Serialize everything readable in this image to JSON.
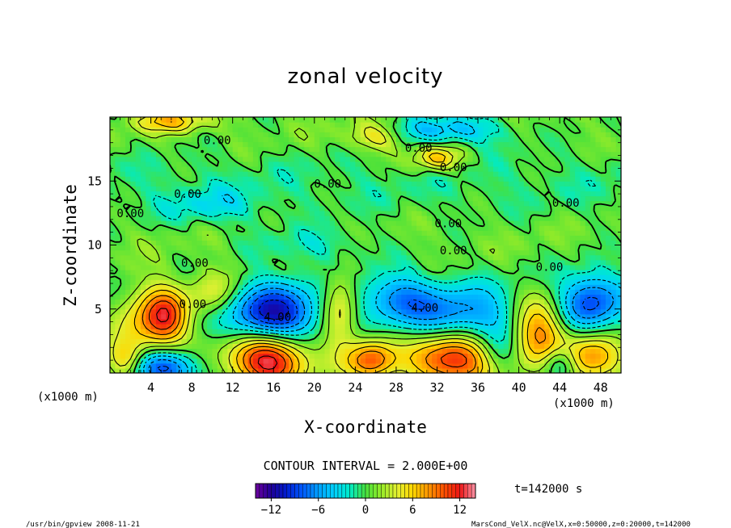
{
  "chart_data": {
    "type": "heatmap",
    "title": "zonal velocity",
    "xlabel": "X-coordinate",
    "ylabel": "Z-coordinate",
    "x_unit_left": "(x1000 m)",
    "x_unit_right": "(x1000 m)",
    "xlim": [
      0,
      50
    ],
    "ylim": [
      0,
      20
    ],
    "x_ticks": [
      4,
      8,
      12,
      16,
      20,
      24,
      28,
      32,
      36,
      40,
      44,
      48
    ],
    "y_ticks": [
      5,
      10,
      15
    ],
    "contour_interval_text": "CONTOUR INTERVAL = 2.000E+00",
    "time_label": "t=142000 s",
    "colorbar": {
      "vmin": -14,
      "vmax": 14,
      "ticks": [
        -12,
        -6,
        0,
        6,
        12
      ]
    },
    "contour_labels": [
      {
        "text": "0.00",
        "x": 10.5,
        "z": 18.2
      },
      {
        "text": "0.00",
        "x": 30.2,
        "z": 17.6
      },
      {
        "text": "0.00",
        "x": 33.6,
        "z": 16.1
      },
      {
        "text": "0.00",
        "x": 21.3,
        "z": 14.8
      },
      {
        "text": "0.00",
        "x": 7.6,
        "z": 14.0
      },
      {
        "text": "0.00",
        "x": 2.0,
        "z": 12.5
      },
      {
        "text": "0.00",
        "x": 44.6,
        "z": 13.3
      },
      {
        "text": "0.00",
        "x": 33.1,
        "z": 11.7
      },
      {
        "text": "0.00",
        "x": 33.6,
        "z": 9.6
      },
      {
        "text": "0.00",
        "x": 8.3,
        "z": 8.6
      },
      {
        "text": "0.00",
        "x": 43.0,
        "z": 8.3
      },
      {
        "text": "0.00",
        "x": 8.1,
        "z": 5.4
      },
      {
        "text": "4.00",
        "x": 16.4,
        "z": 4.4
      },
      {
        "text": "4.00",
        "x": 30.8,
        "z": 5.1
      }
    ],
    "features": [
      {
        "x": 5.5,
        "z": 4.5,
        "value": 10,
        "sx": 1.6,
        "sz": 1.6
      },
      {
        "x": 3.0,
        "z": 4.2,
        "value": 5,
        "sx": 2.0,
        "sz": 2.2
      },
      {
        "x": 15.5,
        "z": 1.0,
        "value": 13,
        "sx": 2.6,
        "sz": 1.5
      },
      {
        "x": 22.5,
        "z": 5.0,
        "value": 6,
        "sx": 1.2,
        "sz": 2.2
      },
      {
        "x": 25.5,
        "z": 1.0,
        "value": 9,
        "sx": 1.6,
        "sz": 1.1
      },
      {
        "x": 33.5,
        "z": 1.2,
        "value": 12,
        "sx": 3.0,
        "sz": 1.5
      },
      {
        "x": 42.0,
        "z": 3.5,
        "value": 9,
        "sx": 1.8,
        "sz": 1.9
      },
      {
        "x": 10.0,
        "z": 6.3,
        "value": 5,
        "sx": 1.6,
        "sz": 1.3
      },
      {
        "x": 47.0,
        "z": 1.2,
        "value": 8,
        "sx": 2.0,
        "sz": 1.3
      },
      {
        "x": 26.0,
        "z": 18.5,
        "value": 5,
        "sx": 2.0,
        "sz": 0.8
      },
      {
        "x": 32.0,
        "z": 16.8,
        "value": 7,
        "sx": 1.6,
        "sz": 0.7
      },
      {
        "x": 6.0,
        "z": 19.7,
        "value": 6,
        "sx": 2.5,
        "sz": 0.6
      },
      {
        "x": 16.0,
        "z": 4.5,
        "value": -11,
        "sx": 3.0,
        "sz": 1.6
      },
      {
        "x": 5.0,
        "z": 0.5,
        "value": -10,
        "sx": 2.5,
        "sz": 1.0
      },
      {
        "x": 34.0,
        "z": 4.3,
        "value": -7,
        "sx": 4.0,
        "sz": 1.6
      },
      {
        "x": 28.0,
        "z": 6.0,
        "value": -5,
        "sx": 2.5,
        "sz": 1.3
      },
      {
        "x": 47.0,
        "z": 5.5,
        "value": -8,
        "sx": 2.2,
        "sz": 1.7
      },
      {
        "x": 38.0,
        "z": 1.5,
        "value": -4,
        "sx": 1.5,
        "sz": 1.2
      },
      {
        "x": 33.0,
        "z": 19.0,
        "value": -6,
        "sx": 4.0,
        "sz": 0.8
      },
      {
        "x": 10.0,
        "z": 13.0,
        "value": -3,
        "sx": 3.5,
        "sz": 1.0
      },
      {
        "x": 20.0,
        "z": 10.0,
        "value": -3,
        "sx": 4.0,
        "sz": 1.0
      },
      {
        "x": 1.5,
        "z": 1.0,
        "value": 6,
        "sx": 1.2,
        "sz": 1.0
      },
      {
        "x": 44.0,
        "z": 0.8,
        "value": -6,
        "sx": 1.2,
        "sz": 0.9
      }
    ]
  },
  "footer": {
    "left": "/usr/bin/gpview  2008-11-21",
    "right": "MarsCond_VelX.nc@VelX,x=0:50000,z=0:20000,t=142000"
  }
}
